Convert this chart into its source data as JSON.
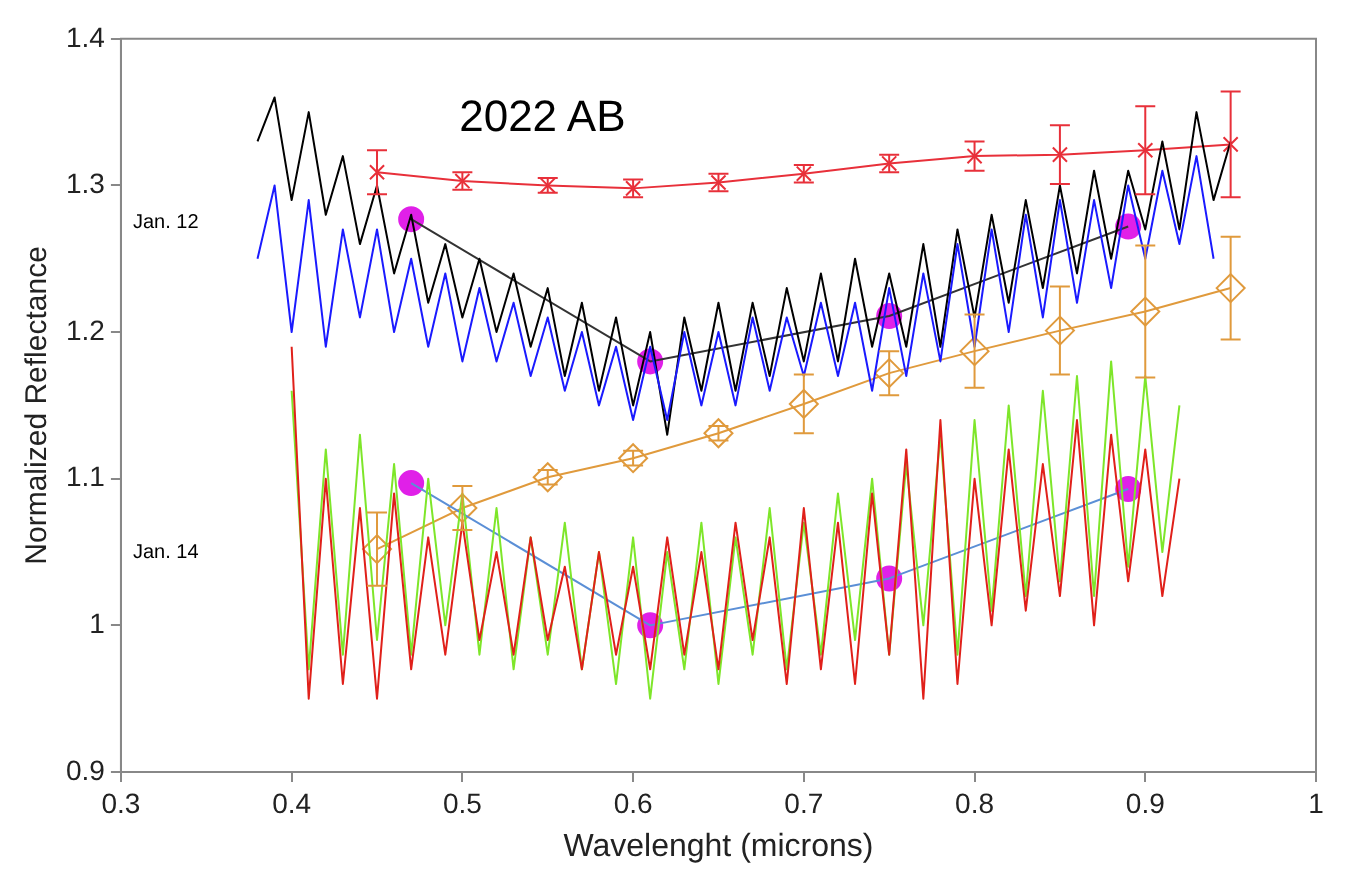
{
  "chart_data": {
    "type": "line",
    "title": "2022 AB",
    "xlabel": "Wavelenght (microns)",
    "ylabel": "Normalized Reflectance",
    "annotations": [
      "Jan. 12",
      "Jan. 14"
    ],
    "xlim": [
      0.3,
      1
    ],
    "xticks": [
      0.3,
      0.4,
      0.5,
      0.6,
      0.7,
      0.8,
      0.9,
      1
    ],
    "ylim": [
      0.9,
      1.4
    ],
    "yticks": [
      0.9,
      1,
      1.1,
      1.2,
      1.3,
      1.4
    ],
    "series": [
      {
        "type": "line",
        "marker": "none",
        "color": "#e0201a",
        "x": [
          0.4,
          0.41,
          0.42,
          0.43,
          0.44,
          0.45,
          0.46,
          0.47,
          0.48,
          0.49,
          0.5,
          0.51,
          0.52,
          0.53,
          0.54,
          0.55,
          0.56,
          0.57,
          0.58,
          0.59,
          0.6,
          0.61,
          0.62,
          0.63,
          0.64,
          0.65,
          0.66,
          0.67,
          0.68,
          0.69,
          0.7,
          0.71,
          0.72,
          0.73,
          0.74,
          0.75,
          0.76,
          0.77,
          0.78,
          0.79,
          0.8,
          0.81,
          0.82,
          0.83,
          0.84,
          0.85,
          0.86,
          0.87,
          0.88,
          0.89,
          0.9,
          0.91,
          0.92
        ],
        "values": [
          1.19,
          0.95,
          1.1,
          0.96,
          1.08,
          0.95,
          1.09,
          0.97,
          1.06,
          0.98,
          1.07,
          0.99,
          1.05,
          0.98,
          1.06,
          0.99,
          1.04,
          0.97,
          1.05,
          0.98,
          1.04,
          0.97,
          1.06,
          0.98,
          1.05,
          0.97,
          1.07,
          0.99,
          1.06,
          0.96,
          1.08,
          0.97,
          1.07,
          0.96,
          1.09,
          0.98,
          1.12,
          0.95,
          1.14,
          0.96,
          1.1,
          1.0,
          1.12,
          1.01,
          1.11,
          1.02,
          1.14,
          1.0,
          1.13,
          1.03,
          1.12,
          1.02,
          1.1
        ]
      },
      {
        "type": "line",
        "marker": "none",
        "color": "#7ee62a",
        "x": [
          0.4,
          0.41,
          0.42,
          0.43,
          0.44,
          0.45,
          0.46,
          0.47,
          0.48,
          0.49,
          0.5,
          0.51,
          0.52,
          0.53,
          0.54,
          0.55,
          0.56,
          0.57,
          0.58,
          0.59,
          0.6,
          0.61,
          0.62,
          0.63,
          0.64,
          0.65,
          0.66,
          0.67,
          0.68,
          0.69,
          0.7,
          0.71,
          0.72,
          0.73,
          0.74,
          0.75,
          0.76,
          0.77,
          0.78,
          0.79,
          0.8,
          0.81,
          0.82,
          0.83,
          0.84,
          0.85,
          0.86,
          0.87,
          0.88,
          0.89,
          0.9,
          0.91,
          0.92
        ],
        "values": [
          1.16,
          0.97,
          1.12,
          0.98,
          1.13,
          0.99,
          1.11,
          0.98,
          1.1,
          1.0,
          1.09,
          0.98,
          1.08,
          0.97,
          1.06,
          0.98,
          1.07,
          0.97,
          1.05,
          0.96,
          1.06,
          0.95,
          1.05,
          0.97,
          1.07,
          0.96,
          1.06,
          0.98,
          1.08,
          0.97,
          1.07,
          0.98,
          1.09,
          0.99,
          1.1,
          0.98,
          1.11,
          1.0,
          1.13,
          0.98,
          1.14,
          1.01,
          1.15,
          1.02,
          1.16,
          1.03,
          1.17,
          1.02,
          1.18,
          1.04,
          1.17,
          1.05,
          1.15
        ]
      },
      {
        "type": "line",
        "marker": "none",
        "color": "#1a1aff",
        "x": [
          0.38,
          0.39,
          0.4,
          0.41,
          0.42,
          0.43,
          0.44,
          0.45,
          0.46,
          0.47,
          0.48,
          0.49,
          0.5,
          0.51,
          0.52,
          0.53,
          0.54,
          0.55,
          0.56,
          0.57,
          0.58,
          0.59,
          0.6,
          0.61,
          0.62,
          0.63,
          0.64,
          0.65,
          0.66,
          0.67,
          0.68,
          0.69,
          0.7,
          0.71,
          0.72,
          0.73,
          0.74,
          0.75,
          0.76,
          0.77,
          0.78,
          0.79,
          0.8,
          0.81,
          0.82,
          0.83,
          0.84,
          0.85,
          0.86,
          0.87,
          0.88,
          0.89,
          0.9,
          0.91,
          0.92,
          0.93,
          0.94
        ],
        "values": [
          1.25,
          1.3,
          1.2,
          1.29,
          1.19,
          1.27,
          1.21,
          1.27,
          1.2,
          1.25,
          1.19,
          1.24,
          1.18,
          1.23,
          1.18,
          1.22,
          1.17,
          1.21,
          1.16,
          1.2,
          1.15,
          1.19,
          1.14,
          1.19,
          1.14,
          1.2,
          1.15,
          1.2,
          1.15,
          1.21,
          1.16,
          1.21,
          1.17,
          1.22,
          1.17,
          1.22,
          1.16,
          1.23,
          1.17,
          1.24,
          1.18,
          1.26,
          1.19,
          1.27,
          1.2,
          1.28,
          1.21,
          1.29,
          1.22,
          1.29,
          1.23,
          1.3,
          1.25,
          1.31,
          1.26,
          1.32,
          1.25
        ]
      },
      {
        "type": "line",
        "marker": "none",
        "color": "#000000",
        "x": [
          0.38,
          0.39,
          0.4,
          0.41,
          0.42,
          0.43,
          0.44,
          0.45,
          0.46,
          0.47,
          0.48,
          0.49,
          0.5,
          0.51,
          0.52,
          0.53,
          0.54,
          0.55,
          0.56,
          0.57,
          0.58,
          0.59,
          0.6,
          0.61,
          0.62,
          0.63,
          0.64,
          0.65,
          0.66,
          0.67,
          0.68,
          0.69,
          0.7,
          0.71,
          0.72,
          0.73,
          0.74,
          0.75,
          0.76,
          0.77,
          0.78,
          0.79,
          0.8,
          0.81,
          0.82,
          0.83,
          0.84,
          0.85,
          0.86,
          0.87,
          0.88,
          0.89,
          0.9,
          0.91,
          0.92,
          0.93,
          0.94,
          0.95
        ],
        "values": [
          1.33,
          1.36,
          1.29,
          1.35,
          1.28,
          1.32,
          1.26,
          1.3,
          1.24,
          1.28,
          1.22,
          1.26,
          1.21,
          1.25,
          1.2,
          1.24,
          1.19,
          1.23,
          1.17,
          1.22,
          1.16,
          1.21,
          1.15,
          1.2,
          1.13,
          1.21,
          1.16,
          1.22,
          1.16,
          1.22,
          1.17,
          1.23,
          1.18,
          1.24,
          1.18,
          1.25,
          1.19,
          1.24,
          1.19,
          1.26,
          1.19,
          1.27,
          1.21,
          1.28,
          1.22,
          1.29,
          1.23,
          1.3,
          1.24,
          1.31,
          1.25,
          1.31,
          1.27,
          1.33,
          1.27,
          1.35,
          1.29,
          1.33
        ]
      },
      {
        "type": "line",
        "marker": "none",
        "color": "#333333",
        "x": [
          0.47,
          0.61,
          0.75,
          0.89
        ],
        "values": [
          1.277,
          1.18,
          1.211,
          1.272
        ]
      },
      {
        "type": "line",
        "marker": "none",
        "color": "#5b8fd6",
        "x": [
          0.47,
          0.61,
          0.75,
          0.89
        ],
        "values": [
          1.097,
          1.0,
          1.032,
          1.093
        ]
      },
      {
        "marker": "cross",
        "color": "#e8303a",
        "x": [
          0.45,
          0.5,
          0.55,
          0.6,
          0.65,
          0.7,
          0.75,
          0.8,
          0.85,
          0.9,
          0.95
        ],
        "values": [
          1.309,
          1.303,
          1.3,
          1.298,
          1.302,
          1.308,
          1.315,
          1.32,
          1.321,
          1.324,
          1.328
        ],
        "errors": [
          0.015,
          0.006,
          0.005,
          0.006,
          0.006,
          0.006,
          0.006,
          0.01,
          0.02,
          0.03,
          0.036
        ]
      },
      {
        "marker": "diamond",
        "color": "#e09a3c",
        "x": [
          0.45,
          0.5,
          0.55,
          0.6,
          0.65,
          0.7,
          0.75,
          0.8,
          0.85,
          0.9,
          0.95
        ],
        "values": [
          1.052,
          1.08,
          1.101,
          1.114,
          1.131,
          1.151,
          1.172,
          1.187,
          1.201,
          1.214,
          1.23
        ],
        "errors": [
          0.025,
          0.015,
          0.005,
          0.005,
          0.005,
          0.02,
          0.015,
          0.025,
          0.03,
          0.045,
          0.035
        ]
      },
      {
        "type": "scatter",
        "marker": "circle",
        "color": "#e020e8",
        "x": [
          0.47,
          0.61,
          0.75,
          0.89,
          0.47,
          0.61,
          0.75,
          0.89
        ],
        "values": [
          1.277,
          1.18,
          1.211,
          1.272,
          1.097,
          1.0,
          1.032,
          1.093
        ]
      }
    ]
  }
}
